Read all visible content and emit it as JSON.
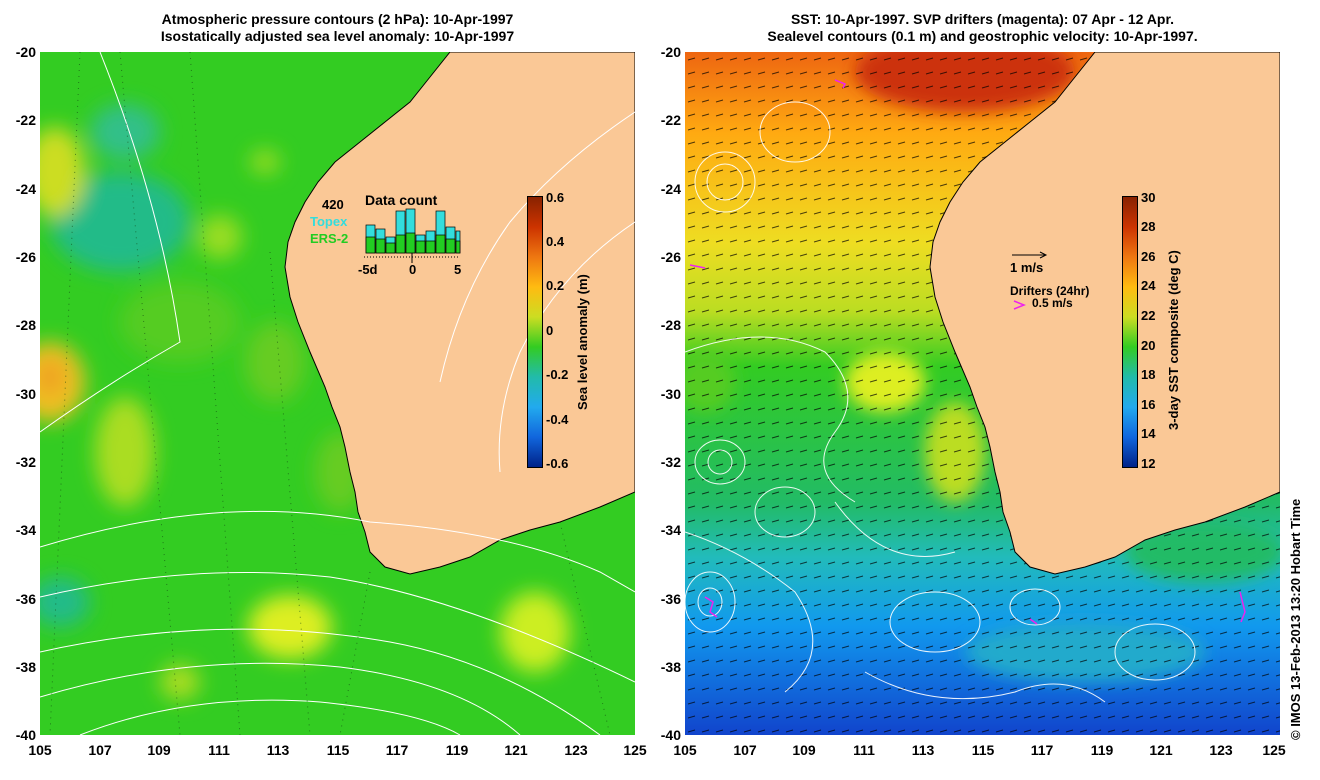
{
  "left_panel": {
    "title_line1": "Atmospheric pressure contours (2 hPa): 10-Apr-1997",
    "title_line2": "Isostatically adjusted sea level anomaly: 10-Apr-1997",
    "y_ticks": [
      "-20",
      "-22",
      "-24",
      "-26",
      "-28",
      "-30",
      "-32",
      "-34",
      "-36",
      "-38",
      "-40"
    ],
    "x_ticks": [
      "105",
      "107",
      "109",
      "111",
      "113",
      "115",
      "117",
      "119",
      "121",
      "123",
      "125"
    ],
    "colorbar": {
      "label": "Sea level anomaly (m)",
      "ticks": [
        "0.6",
        "0.4",
        "0.2",
        "0",
        "-0.2",
        "-0.4",
        "-0.6"
      ]
    },
    "inset": {
      "total": "420",
      "title": "Data count",
      "series1": "Topex",
      "series2": "ERS-2",
      "series1_color": "#33dddd",
      "series2_color": "#22cc22",
      "x_labels": [
        "-5d",
        "0",
        "5"
      ]
    }
  },
  "right_panel": {
    "title_line1": "SST: 10-Apr-1997. SVP drifters (magenta): 07 Apr - 12 Apr.",
    "title_line2": "Sealevel contours (0.1 m) and geostrophic velocity: 10-Apr-1997.",
    "y_ticks": [
      "-20",
      "-22",
      "-24",
      "-26",
      "-28",
      "-30",
      "-32",
      "-34",
      "-36",
      "-38",
      "-40"
    ],
    "x_ticks": [
      "105",
      "107",
      "109",
      "111",
      "113",
      "115",
      "117",
      "119",
      "121",
      "123",
      "125"
    ],
    "colorbar": {
      "label": "3-day SST composite (deg C)",
      "ticks": [
        "30",
        "28",
        "26",
        "24",
        "22",
        "20",
        "18",
        "16",
        "14",
        "12"
      ]
    },
    "vector_scale_label": "1 m/s",
    "drifter_title": "Drifters (24hr)",
    "drifter_scale_label": "0.5 m/s",
    "drifter_color": "#ee22ee"
  },
  "colors": {
    "land": "#fac896",
    "ocean_green": "#33cc22"
  },
  "credit": "© IMOS 13-Feb-2013 13:20 Hobart Time"
}
